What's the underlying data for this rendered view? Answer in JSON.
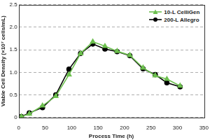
{
  "chart_data": {
    "type": "line",
    "x_label": "Process Time (h)",
    "y_label": "Viable Cell Density (×10⁷ cells/mL)",
    "x": [
      5,
      20,
      45,
      70,
      95,
      117,
      140,
      163,
      186,
      210,
      235,
      258,
      280,
      305
    ],
    "series": [
      {
        "name": "10-L CelliGen",
        "color": "#6cbf4e",
        "marker": "triangle",
        "line_style": "solid",
        "values": [
          0.02,
          0.08,
          0.26,
          0.47,
          0.95,
          1.42,
          1.68,
          1.58,
          1.47,
          1.38,
          1.1,
          0.93,
          0.85,
          0.7
        ]
      },
      {
        "name": "200-L Allegro",
        "color": "#000000",
        "marker": "circle",
        "line_style": "solid",
        "values": [
          0.02,
          0.1,
          0.22,
          0.5,
          1.07,
          1.42,
          1.63,
          1.52,
          1.46,
          1.37,
          1.08,
          0.95,
          0.77,
          0.68
        ]
      }
    ],
    "xlim": [
      0,
      350
    ],
    "xticks": [
      0,
      50,
      100,
      150,
      200,
      250,
      300,
      350
    ],
    "ylim": [
      0,
      2.5
    ],
    "yticks": [
      0,
      0.5,
      {
        "value": 1,
        "label": "1.0"
      },
      1.5,
      {
        "value": 2,
        "label": "2.0"
      },
      2.5
    ],
    "grid": true,
    "legend": "upper right"
  }
}
